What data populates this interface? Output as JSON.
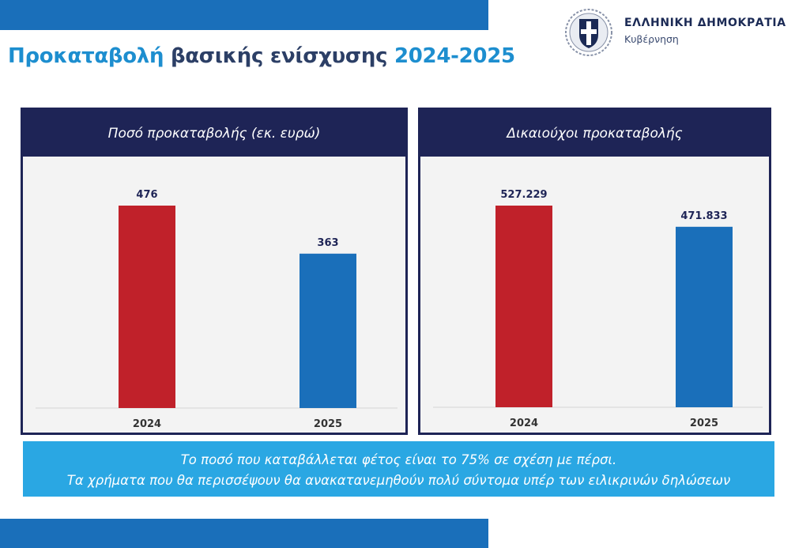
{
  "title": {
    "part1": "Προκαταβολή",
    "part2": "βασικής ενίσχυσης",
    "part3": "2024-2025"
  },
  "logo": {
    "title": "ΕΛΛΗΝΙΚΗ ΔΗΜΟΚΡΑΤΙΑ",
    "subtitle": "Κυβέρνηση",
    "icon": "greek-coat-of-arms-icon"
  },
  "colors": {
    "accent": "#1d8ecf",
    "navy": "#1e2456",
    "bar_2024": "#c0212a",
    "bar_2025": "#1a6fba",
    "banner": "#2aa7e3"
  },
  "chart_data": [
    {
      "type": "bar",
      "title": "Ποσό προκαταβολής (εκ. ευρώ)",
      "categories": [
        "2024",
        "2025"
      ],
      "values": [
        476,
        363
      ],
      "labels": [
        "476",
        "363"
      ],
      "ylim": [
        0,
        476
      ],
      "xlabel": "",
      "ylabel": "",
      "grid": false
    },
    {
      "type": "bar",
      "title": "Δικαιούχοι προκαταβολής",
      "categories": [
        "2024",
        "2025"
      ],
      "values": [
        527229,
        471833
      ],
      "labels": [
        "527.229",
        "471.833"
      ],
      "ylim": [
        0,
        527229
      ],
      "xlabel": "",
      "ylabel": "",
      "grid": false
    }
  ],
  "banner": {
    "line1": "Το ποσό που καταβάλλεται φέτος είναι το 75% σε σχέση με πέρσι.",
    "line2": "Τα χρήματα που θα περισσέψουν θα ανακατανεμηθούν πολύ σύντομα υπέρ των ειλικρινών δηλώσεων"
  }
}
